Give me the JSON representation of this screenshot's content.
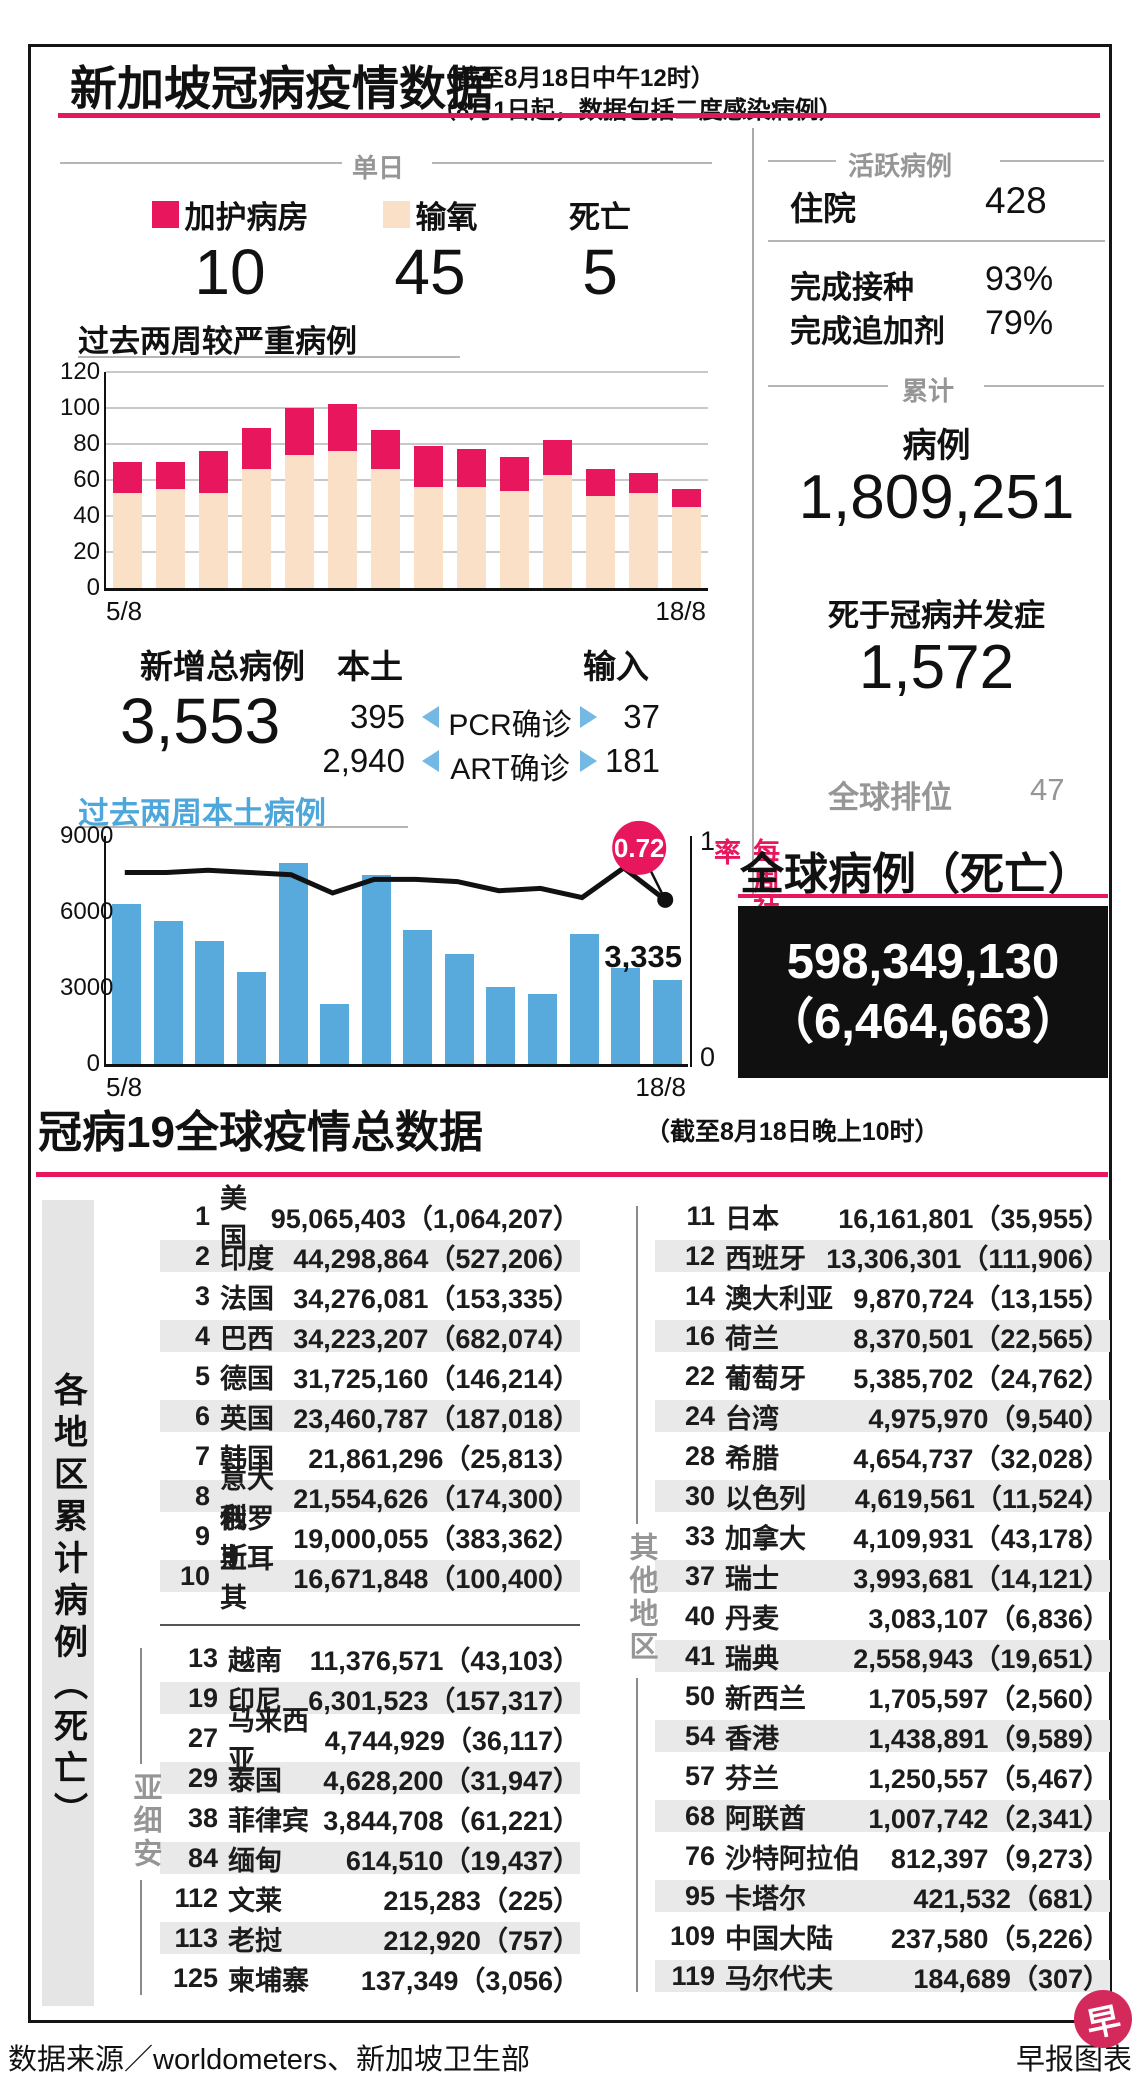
{
  "header": {
    "title": "新加坡冠病疫情数据",
    "note1": "（截至8月18日中午12时）",
    "note2": "（8月1日起，数据包括二度感染病例）"
  },
  "daily": {
    "section_label": "单日",
    "items": [
      {
        "label": "加护病房",
        "value": "10",
        "swatch": "#e8175d"
      },
      {
        "label": "输氧",
        "value": "45",
        "swatch": "#fbe0c8"
      },
      {
        "label": "死亡",
        "value": "5",
        "swatch": ""
      }
    ]
  },
  "chart_data": [
    {
      "type": "bar",
      "subtype": "stacked-bar",
      "title": "过去两周较严重病例",
      "x_first": "5/8",
      "x_last": "18/8",
      "ylim": [
        0,
        120
      ],
      "yticks": [
        0,
        20,
        40,
        60,
        80,
        100,
        120
      ],
      "grid": true,
      "series": [
        {
          "name": "输氧",
          "color": "#fbe0c8",
          "values": [
            53,
            55,
            53,
            66,
            74,
            76,
            66,
            56,
            56,
            54,
            63,
            51,
            53,
            45
          ]
        },
        {
          "name": "加护病房",
          "color": "#e8175d",
          "values": [
            17,
            15,
            23,
            23,
            26,
            26,
            22,
            23,
            21,
            19,
            19,
            15,
            11,
            10
          ]
        }
      ]
    },
    {
      "type": "bar",
      "subtype": "bar+line",
      "title": "过去两周本土病例",
      "x_first": "5/8",
      "x_last": "18/8",
      "ylim": [
        0,
        9000
      ],
      "yticks": [
        0,
        3000,
        6000,
        9000
      ],
      "grid": false,
      "bar_color": "#58a9dc",
      "bar_values": [
        6300,
        5650,
        4850,
        3650,
        7950,
        2350,
        7450,
        5300,
        4350,
        3050,
        2750,
        5150,
        3800,
        3335
      ],
      "last_bar_label": "3,335",
      "line_color": "#111111",
      "line_values": [
        0.84,
        0.84,
        0.85,
        0.84,
        0.83,
        0.75,
        0.81,
        0.81,
        0.8,
        0.76,
        0.77,
        0.73,
        0.86,
        0.72
      ],
      "line_ylim": [
        0,
        1
      ],
      "line_axis_top": "1",
      "line_axis_bottom": "0",
      "line_last_label": "0.72",
      "right_axis_label": "每周社区病例增长率"
    }
  ],
  "new_cases": {
    "label": "新增总病例",
    "total": "3,553",
    "col_local": "本土",
    "col_imported": "输入",
    "rows": [
      {
        "local": "395",
        "label": "PCR确诊",
        "imported": "37"
      },
      {
        "local": "2,940",
        "label": "ART确诊",
        "imported": "181"
      }
    ]
  },
  "active": {
    "section_label": "活跃病例",
    "hospital_label": "住院",
    "hospital_value": "428",
    "vacc_label": "完成接种",
    "vacc_value": "93%",
    "booster_label": "完成追加剂",
    "booster_value": "79%"
  },
  "cumulative": {
    "section_label": "累计",
    "cases_label": "病例",
    "cases_value": "1,809,251",
    "deaths_label": "死于冠病并发症",
    "deaths_value": "1,572",
    "rank_label": "全球排位",
    "rank_value": "47"
  },
  "global": {
    "heading": "全球病例（死亡）",
    "cases": "598,349,130",
    "deaths": "（6,464,663）"
  },
  "table": {
    "title": "冠病19全球疫情总数据",
    "note": "（截至8月18日晚上10时）",
    "sidebar": "各地区累计病例（死亡）",
    "group_asean": "亚细安",
    "group_other": "其他地区",
    "top10": [
      {
        "rank": "1",
        "name": "美国",
        "cases": "95,065,403",
        "deaths": "1,064,207"
      },
      {
        "rank": "2",
        "name": "印度",
        "cases": "44,298,864",
        "deaths": "527,206"
      },
      {
        "rank": "3",
        "name": "法国",
        "cases": "34,276,081",
        "deaths": "153,335"
      },
      {
        "rank": "4",
        "name": "巴西",
        "cases": "34,223,207",
        "deaths": "682,074"
      },
      {
        "rank": "5",
        "name": "德国",
        "cases": "31,725,160",
        "deaths": "146,214"
      },
      {
        "rank": "6",
        "name": "英国",
        "cases": "23,460,787",
        "deaths": "187,018"
      },
      {
        "rank": "7",
        "name": "韩国",
        "cases": "21,861,296",
        "deaths": "25,813"
      },
      {
        "rank": "8",
        "name": "意大利",
        "cases": "21,554,626",
        "deaths": "174,300"
      },
      {
        "rank": "9",
        "name": "俄罗斯",
        "cases": "19,000,055",
        "deaths": "383,362"
      },
      {
        "rank": "10",
        "name": "土耳其",
        "cases": "16,671,848",
        "deaths": "100,400"
      }
    ],
    "asean": [
      {
        "rank": "13",
        "name": "越南",
        "cases": "11,376,571",
        "deaths": "43,103"
      },
      {
        "rank": "19",
        "name": "印尼",
        "cases": "6,301,523",
        "deaths": "157,317"
      },
      {
        "rank": "27",
        "name": "马来西亚",
        "cases": "4,744,929",
        "deaths": "36,117"
      },
      {
        "rank": "29",
        "name": "泰国",
        "cases": "4,628,200",
        "deaths": "31,947"
      },
      {
        "rank": "38",
        "name": "菲律宾",
        "cases": "3,844,708",
        "deaths": "61,221"
      },
      {
        "rank": "84",
        "name": "缅甸",
        "cases": "614,510",
        "deaths": "19,437"
      },
      {
        "rank": "112",
        "name": "文莱",
        "cases": "215,283",
        "deaths": "225"
      },
      {
        "rank": "113",
        "name": "老挝",
        "cases": "212,920",
        "deaths": "757"
      },
      {
        "rank": "125",
        "name": "柬埔寨",
        "cases": "137,349",
        "deaths": "3,056"
      }
    ],
    "other": [
      {
        "rank": "11",
        "name": "日本",
        "cases": "16,161,801",
        "deaths": "35,955"
      },
      {
        "rank": "12",
        "name": "西班牙",
        "cases": "13,306,301",
        "deaths": "111,906"
      },
      {
        "rank": "14",
        "name": "澳大利亚",
        "cases": "9,870,724",
        "deaths": "13,155"
      },
      {
        "rank": "16",
        "name": "荷兰",
        "cases": "8,370,501",
        "deaths": "22,565"
      },
      {
        "rank": "22",
        "name": "葡萄牙",
        "cases": "5,385,702",
        "deaths": "24,762"
      },
      {
        "rank": "24",
        "name": "台湾",
        "cases": "4,975,970",
        "deaths": "9,540"
      },
      {
        "rank": "28",
        "name": "希腊",
        "cases": "4,654,737",
        "deaths": "32,028"
      },
      {
        "rank": "30",
        "name": "以色列",
        "cases": "4,619,561",
        "deaths": "11,524"
      },
      {
        "rank": "33",
        "name": "加拿大",
        "cases": "4,109,931",
        "deaths": "43,178"
      },
      {
        "rank": "37",
        "name": "瑞士",
        "cases": "3,993,681",
        "deaths": "14,121"
      },
      {
        "rank": "40",
        "name": "丹麦",
        "cases": "3,083,107",
        "deaths": "6,836"
      },
      {
        "rank": "41",
        "name": "瑞典",
        "cases": "2,558,943",
        "deaths": "19,651"
      },
      {
        "rank": "50",
        "name": "新西兰",
        "cases": "1,705,597",
        "deaths": "2,560"
      },
      {
        "rank": "54",
        "name": "香港",
        "cases": "1,438,891",
        "deaths": "9,589"
      },
      {
        "rank": "57",
        "name": "芬兰",
        "cases": "1,250,557",
        "deaths": "5,467"
      },
      {
        "rank": "68",
        "name": "阿联酋",
        "cases": "1,007,742",
        "deaths": "2,341"
      },
      {
        "rank": "76",
        "name": "沙特阿拉伯",
        "cases": "812,397",
        "deaths": "9,273"
      },
      {
        "rank": "95",
        "name": "卡塔尔",
        "cases": "421,532",
        "deaths": "681"
      },
      {
        "rank": "109",
        "name": "中国大陆",
        "cases": "237,580",
        "deaths": "5,226"
      },
      {
        "rank": "119",
        "name": "马尔代夫",
        "cases": "184,689",
        "deaths": "307"
      }
    ]
  },
  "footer": {
    "source": "数据来源／worldometers、新加坡卫生部",
    "credit": "早报图表",
    "logo": "早"
  },
  "colors": {
    "crimson": "#e8175d",
    "peach": "#fbe0c8",
    "blue": "#58a9dc",
    "light_blue_arrow": "#74b9e4",
    "gray_text": "#969696",
    "row_alt": "#e9e9e9",
    "black_box": "#101010"
  }
}
